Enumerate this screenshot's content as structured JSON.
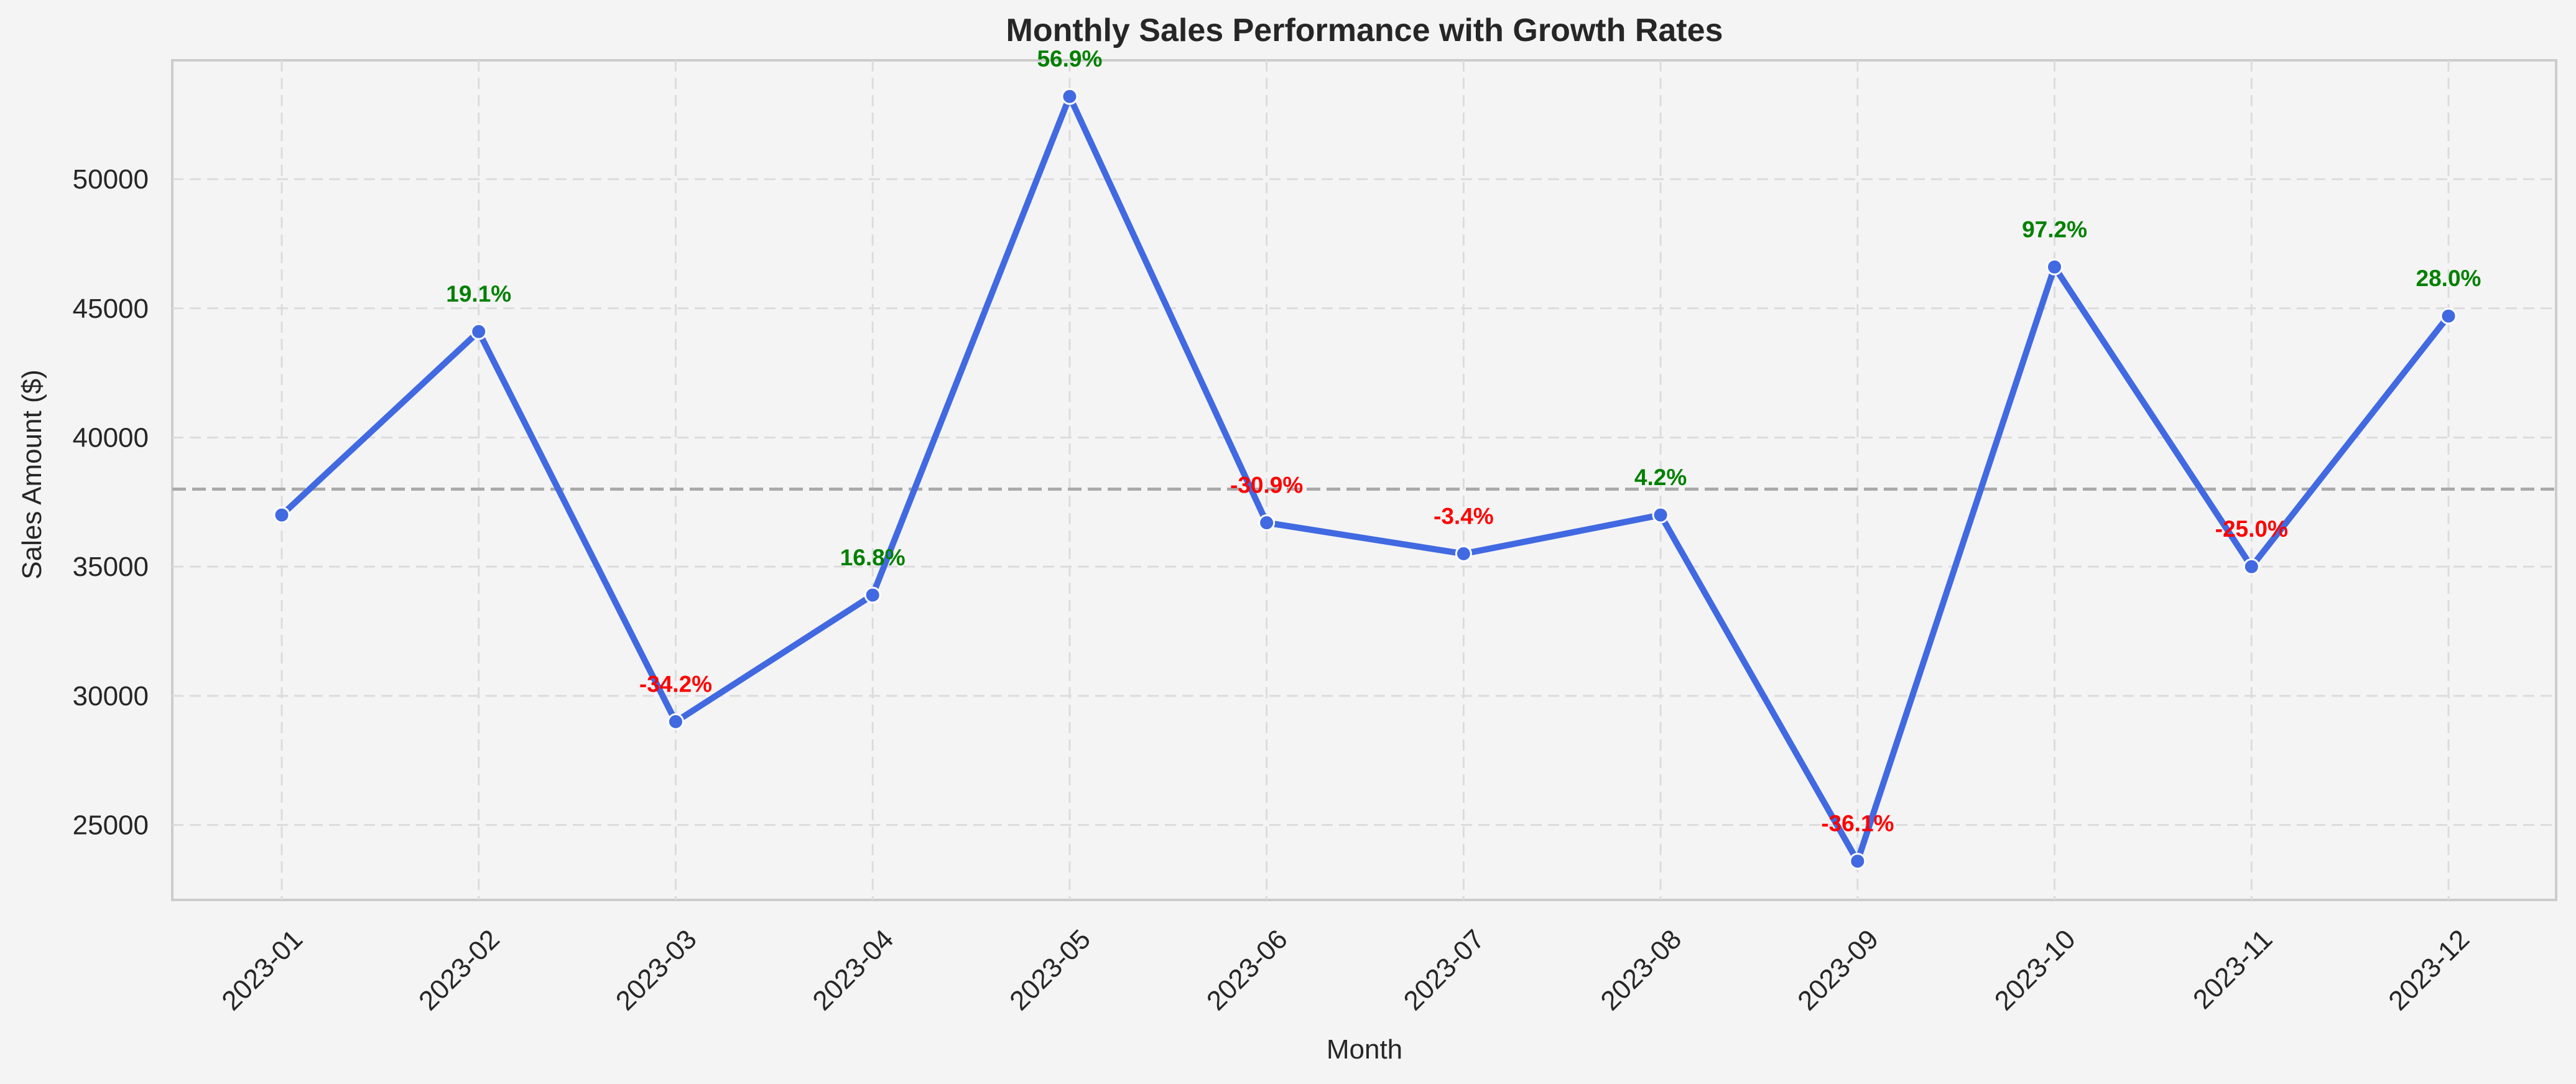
{
  "colors": {
    "background": "#f4f4f4",
    "line": "#4169e1",
    "positive": "#008000",
    "negative": "#ff0000",
    "grid": "#dcdcdc",
    "axis_spine": "#cccccc",
    "reference_line": "#aaaaaa"
  },
  "chart_data": {
    "type": "line",
    "title": "Monthly Sales Performance with Growth Rates",
    "xlabel": "Month",
    "ylabel": "Sales Amount ($)",
    "categories": [
      "2023-01",
      "2023-02",
      "2023-03",
      "2023-04",
      "2023-05",
      "2023-06",
      "2023-07",
      "2023-08",
      "2023-09",
      "2023-10",
      "2023-11",
      "2023-12"
    ],
    "series": [
      {
        "values": [
          37000,
          44100,
          29000,
          33900,
          53200,
          36700,
          35500,
          37000,
          23600,
          46600,
          35000,
          44700
        ],
        "growth_labels": [
          "",
          "19.1%",
          "-34.2%",
          "16.8%",
          "56.9%",
          "-30.9%",
          "-3.4%",
          "4.2%",
          "-36.1%",
          "97.2%",
          "-25.0%",
          "28.0%"
        ]
      }
    ],
    "reference_line": 38000,
    "ylim": [
      22100,
      54600
    ],
    "yticks": [
      25000,
      30000,
      35000,
      40000,
      45000,
      50000
    ],
    "grid": true,
    "x_tick_rotation": 45
  }
}
